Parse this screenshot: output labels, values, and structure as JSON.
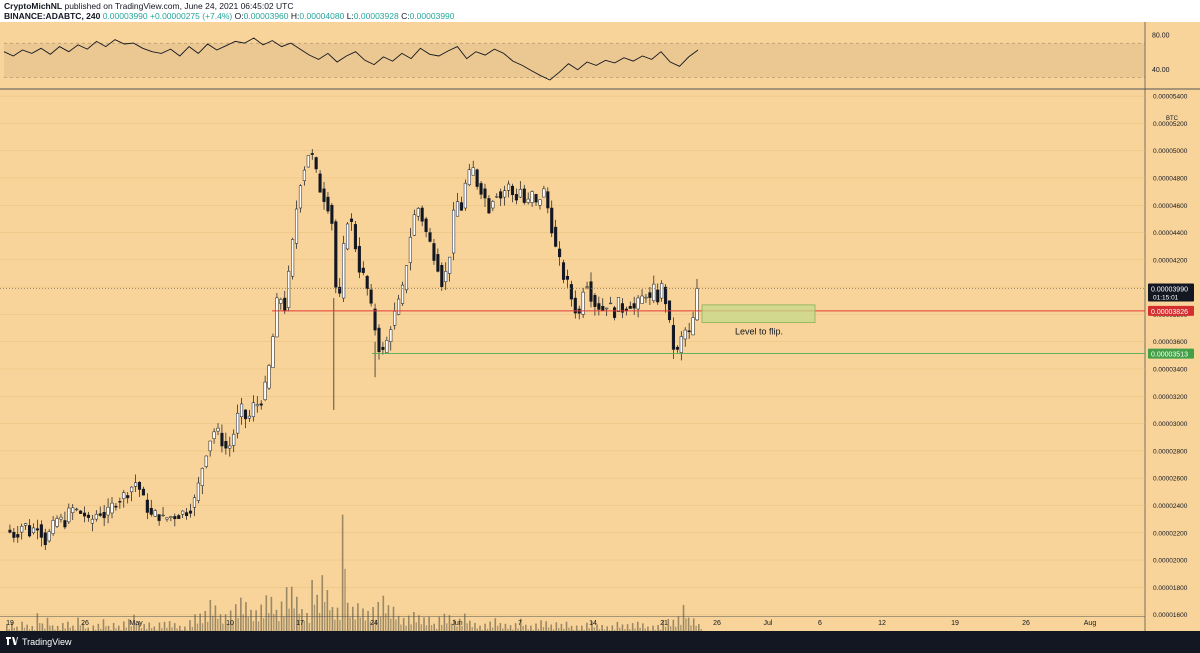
{
  "header": {
    "author": "CryptoMichNL",
    "published_text": "published on TradingView.com, June 24, 2021 06:45:02 UTC",
    "symbol": "BINANCE:ADABTC, 240",
    "price": "0.00003990",
    "change": "+0.00000275 (+7.4%)",
    "o_label": "O:",
    "o_value": "0.00003960",
    "h_label": "H:",
    "h_value": "0.00004080",
    "l_label": "L:",
    "l_value": "0.00003928",
    "c_label": "C:",
    "c_value": "0.00003990"
  },
  "footer": {
    "brand": "TradingView",
    "logo_icon": "tradingview-logo-icon"
  },
  "colors": {
    "background": "#f8d49a",
    "support_line": "#4caf50",
    "resistance_line": "#e53935",
    "zone_fill": "#c5d98a",
    "candle": "#131722"
  },
  "chart_data": [
    {
      "type": "line",
      "title": "",
      "yticks": [
        "80.00",
        "40.00"
      ],
      "ylim": [
        20,
        90
      ],
      "band": [
        30,
        70
      ],
      "series": [
        {
          "values": [
            60,
            55,
            62,
            58,
            64,
            57,
            66,
            60,
            68,
            63,
            72,
            66,
            74,
            69,
            70,
            64,
            60,
            58,
            63,
            55,
            66,
            58,
            69,
            62,
            67,
            72,
            70,
            76,
            68,
            73,
            66,
            70,
            63,
            56,
            51,
            58,
            48,
            55,
            60,
            50,
            45,
            54,
            49,
            58,
            52,
            64,
            57,
            55,
            61,
            66,
            52,
            60,
            56,
            63,
            58,
            49,
            44,
            38,
            32,
            27,
            36,
            46,
            39,
            48,
            44,
            50,
            47,
            53,
            49,
            55,
            51,
            60,
            48,
            43,
            54,
            62
          ]
        }
      ]
    },
    {
      "type": "candlestick",
      "title": "",
      "y_unit": "BTC",
      "yticks": [
        "0.00005400",
        "0.00005200",
        "0.00005000",
        "0.00004800",
        "0.00004600",
        "0.00004400",
        "0.00004200",
        "0.00004000",
        "0.00003800",
        "0.00003600",
        "0.00003400",
        "0.00003200",
        "0.00003000",
        "0.00002800",
        "0.00002600",
        "0.00002400",
        "0.00002200",
        "0.00002000",
        "0.00001800",
        "0.00001600"
      ],
      "ylim": [
        1.59e-05,
        5.43e-05
      ],
      "x_ticks": [
        "19",
        "26",
        "May",
        "10",
        "17",
        "24",
        "Jun",
        "7",
        "14",
        "21",
        "26",
        "Jul",
        "6",
        "12",
        "19",
        "26",
        "Aug"
      ],
      "close_path": [
        [
          0,
          2.22e-05
        ],
        [
          5,
          2.18e-05
        ],
        [
          9,
          2.28e-05
        ],
        [
          12,
          2.2e-05
        ],
        [
          16,
          2.26e-05
        ],
        [
          20,
          2.14e-05
        ],
        [
          23,
          2.22e-05
        ],
        [
          26,
          2.3e-05
        ],
        [
          30,
          2.28e-05
        ],
        [
          33,
          2.38e-05
        ],
        [
          36,
          2.36e-05
        ],
        [
          40,
          2.33e-05
        ],
        [
          42,
          2.27e-05
        ],
        [
          44,
          2.3e-05
        ],
        [
          47,
          2.36e-05
        ],
        [
          51,
          2.32e-05
        ],
        [
          55,
          2.42e-05
        ],
        [
          59,
          2.46e-05
        ],
        [
          62,
          2.5e-05
        ],
        [
          64,
          2.54e-05
        ],
        [
          66,
          2.57e-05
        ],
        [
          68,
          2.52e-05
        ],
        [
          70,
          2.44e-05
        ],
        [
          72,
          2.38e-05
        ],
        [
          74,
          2.32e-05
        ],
        [
          77,
          2.34e-05
        ],
        [
          80,
          2.3e-05
        ],
        [
          84,
          2.32e-05
        ],
        [
          87,
          2.33e-05
        ],
        [
          92,
          2.36e-05
        ],
        [
          95,
          2.4e-05
        ],
        [
          97,
          2.47e-05
        ],
        [
          99,
          2.62e-05
        ],
        [
          101,
          2.75e-05
        ],
        [
          103,
          2.85e-05
        ],
        [
          105,
          2.93e-05
        ],
        [
          107,
          2.96e-05
        ],
        [
          109,
          2.9e-05
        ],
        [
          111,
          2.84e-05
        ],
        [
          113,
          2.8e-05
        ],
        [
          115,
          2.88e-05
        ],
        [
          117,
          2.98e-05
        ],
        [
          119,
          3.12e-05
        ],
        [
          121,
          3.08e-05
        ],
        [
          123,
          3e-05
        ],
        [
          125,
          3.1e-05
        ],
        [
          127,
          3.16e-05
        ],
        [
          129,
          3.13e-05
        ],
        [
          131,
          3.22e-05
        ],
        [
          133,
          3.3e-05
        ],
        [
          135,
          3.52e-05
        ],
        [
          137,
          3.75e-05
        ],
        [
          138,
          3.88e-05
        ],
        [
          139,
          3.82e-05
        ],
        [
          140,
          3.92e-05
        ],
        [
          142,
          3.85e-05
        ],
        [
          144,
          4.08e-05
        ],
        [
          146,
          4.32e-05
        ],
        [
          148,
          4.58e-05
        ],
        [
          150,
          4.78e-05
        ],
        [
          152,
          4.88e-05
        ],
        [
          154,
          4.98e-05
        ],
        [
          156,
          4.95e-05
        ],
        [
          158,
          4.83e-05
        ],
        [
          160,
          4.72e-05
        ],
        [
          162,
          4.66e-05
        ],
        [
          164,
          4.6e-05
        ],
        [
          166,
          4.48e-05
        ],
        [
          167,
          4.2e-05
        ],
        [
          168,
          4e-05
        ],
        [
          169,
          3.9e-05
        ],
        [
          170,
          3.92e-05
        ],
        [
          172,
          4.28e-05
        ],
        [
          174,
          4.5e-05
        ],
        [
          176,
          4.46e-05
        ],
        [
          178,
          4.3e-05
        ],
        [
          180,
          4.14e-05
        ],
        [
          182,
          4.08e-05
        ],
        [
          184,
          3.98e-05
        ],
        [
          186,
          3.84e-05
        ],
        [
          188,
          3.7e-05
        ],
        [
          190,
          3.56e-05
        ],
        [
          192,
          3.52e-05
        ],
        [
          194,
          3.6e-05
        ],
        [
          196,
          3.72e-05
        ],
        [
          198,
          3.8e-05
        ],
        [
          200,
          3.88e-05
        ],
        [
          202,
          3.98e-05
        ],
        [
          204,
          4.18e-05
        ],
        [
          206,
          4.38e-05
        ],
        [
          208,
          4.52e-05
        ],
        [
          210,
          4.58e-05
        ],
        [
          212,
          4.5e-05
        ],
        [
          214,
          4.4e-05
        ],
        [
          216,
          4.32e-05
        ],
        [
          218,
          4.24e-05
        ],
        [
          220,
          4.16e-05
        ],
        [
          222,
          4.04e-05
        ],
        [
          224,
          4.1e-05
        ],
        [
          226,
          4.25e-05
        ],
        [
          228,
          4.52e-05
        ],
        [
          230,
          4.62e-05
        ],
        [
          232,
          4.58e-05
        ],
        [
          234,
          4.75e-05
        ],
        [
          236,
          4.82e-05
        ],
        [
          238,
          4.86e-05
        ],
        [
          240,
          4.76e-05
        ],
        [
          242,
          4.72e-05
        ],
        [
          244,
          4.65e-05
        ],
        [
          246,
          4.58e-05
        ],
        [
          248,
          4.66e-05
        ],
        [
          250,
          4.7e-05
        ],
        [
          252,
          4.66e-05
        ],
        [
          254,
          4.71e-05
        ],
        [
          256,
          4.74e-05
        ],
        [
          258,
          4.68e-05
        ],
        [
          260,
          4.66e-05
        ],
        [
          262,
          4.72e-05
        ],
        [
          264,
          4.62e-05
        ],
        [
          266,
          4.62e-05
        ],
        [
          268,
          4.68e-05
        ],
        [
          270,
          4.6e-05
        ],
        [
          272,
          4.66e-05
        ],
        [
          274,
          4.7e-05
        ],
        [
          276,
          4.58e-05
        ],
        [
          278,
          4.44e-05
        ],
        [
          280,
          4.28e-05
        ],
        [
          282,
          4.18e-05
        ],
        [
          284,
          4.08e-05
        ],
        [
          286,
          4.02e-05
        ],
        [
          288,
          3.92e-05
        ],
        [
          290,
          3.84e-05
        ],
        [
          292,
          3.8e-05
        ],
        [
          294,
          4e-05
        ],
        [
          296,
          4.04e-05
        ],
        [
          298,
          3.94e-05
        ],
        [
          300,
          3.88e-05
        ],
        [
          302,
          3.86e-05
        ],
        [
          304,
          3.84e-05
        ],
        [
          306,
          3.88e-05
        ],
        [
          308,
          3.85e-05
        ],
        [
          310,
          3.82e-05
        ],
        [
          312,
          3.88e-05
        ],
        [
          314,
          3.84e-05
        ],
        [
          316,
          3.86e-05
        ],
        [
          318,
          3.88e-05
        ],
        [
          320,
          3.84e-05
        ],
        [
          322,
          3.88e-05
        ],
        [
          324,
          3.92e-05
        ],
        [
          326,
          3.96e-05
        ],
        [
          328,
          3.9e-05
        ],
        [
          330,
          3.98e-05
        ],
        [
          332,
          3.92e-05
        ],
        [
          334,
          4e-05
        ],
        [
          336,
          3.9e-05
        ],
        [
          338,
          3.72e-05
        ],
        [
          340,
          3.56e-05
        ],
        [
          342,
          3.52e-05
        ],
        [
          344,
          3.62e-05
        ],
        [
          346,
          3.68e-05
        ],
        [
          348,
          3.65e-05
        ],
        [
          350,
          3.76e-05
        ],
        [
          352,
          3.99e-05
        ]
      ],
      "volume_rel": [
        0.1,
        0.12,
        0.08,
        0.14,
        0.1,
        0.09,
        0.22,
        0.12,
        0.18,
        0.1,
        0.09,
        0.11,
        0.13,
        0.1,
        0.15,
        0.12,
        0.08,
        0.1,
        0.12,
        0.14,
        0.09,
        0.11,
        0.1,
        0.12,
        0.13,
        0.16,
        0.12,
        0.1,
        0.11,
        0.09,
        0.1,
        0.12,
        0.14,
        0.11,
        0.1,
        0.09,
        0.13,
        0.18,
        0.22,
        0.2,
        0.3,
        0.24,
        0.2,
        0.18,
        0.22,
        0.26,
        0.3,
        0.28,
        0.24,
        0.2,
        0.26,
        0.34,
        0.3,
        0.28,
        0.36,
        0.42,
        0.38,
        0.3,
        0.26,
        0.24,
        0.46,
        0.4,
        0.52,
        0.36,
        0.3,
        0.28,
        1.0,
        0.34,
        0.3,
        0.26,
        0.22,
        0.2,
        0.26,
        0.3,
        0.34,
        0.32,
        0.24,
        0.2,
        0.18,
        0.16,
        0.2,
        0.22,
        0.18,
        0.16,
        0.12,
        0.18,
        0.2,
        0.16,
        0.14,
        0.15,
        0.18,
        0.14,
        0.12,
        0.1,
        0.12,
        0.14,
        0.16,
        0.12,
        0.1,
        0.11,
        0.12,
        0.13,
        0.1,
        0.09,
        0.1,
        0.12,
        0.14,
        0.11,
        0.1,
        0.12,
        0.11,
        0.1,
        0.09,
        0.1,
        0.11,
        0.12,
        0.1,
        0.08,
        0.09,
        0.1,
        0.12,
        0.1,
        0.09,
        0.1,
        0.11,
        0.1,
        0.09,
        0.08,
        0.1,
        0.12,
        0.14,
        0.12,
        0.16,
        0.24,
        0.18,
        0.14,
        0.12
      ]
    }
  ],
  "levels": {
    "current_price": "0.00003990",
    "countdown": "01:15:01",
    "resistance": "0.00003826",
    "support": "0.00003513"
  },
  "annotation": {
    "text": "Level to flip."
  }
}
